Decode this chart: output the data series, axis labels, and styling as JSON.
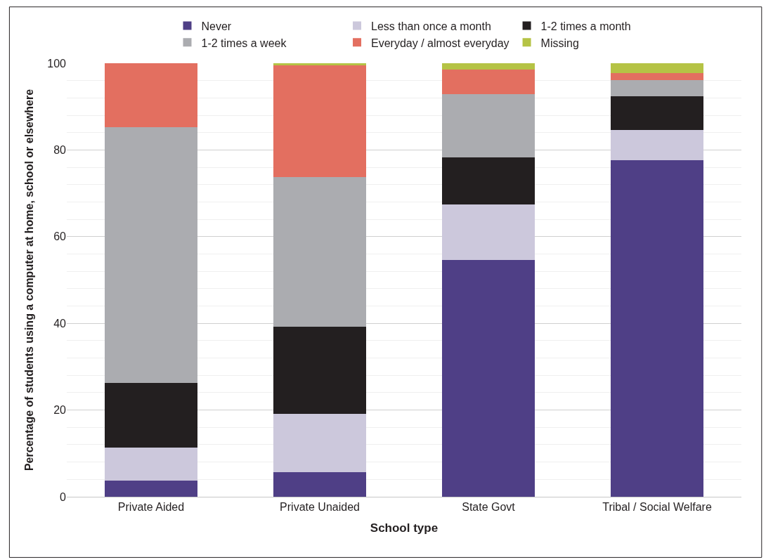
{
  "chart_data": {
    "type": "bar",
    "stacked": true,
    "xlabel": "School type",
    "ylabel": "Percentage of students using a computer at home, school or elsewhere",
    "categories": [
      "Private Aided",
      "Private Unaided",
      "State Govt",
      "Tribal / Social Welfare"
    ],
    "series": [
      {
        "name": "Never",
        "color": "#4f3f86",
        "values": [
          3.7,
          5.6,
          54.7,
          77.6
        ]
      },
      {
        "name": "Less than once a month",
        "color": "#ccc8dc",
        "values": [
          7.7,
          13.6,
          12.8,
          7.0
        ]
      },
      {
        "name": "1-2 times a month",
        "color": "#231f20",
        "values": [
          14.9,
          20.0,
          10.8,
          7.8
        ]
      },
      {
        "name": "1-2 times a week",
        "color": "#abacb0",
        "values": [
          59.0,
          34.5,
          14.6,
          3.7
        ]
      },
      {
        "name": "Everyday / almost everyday",
        "color": "#e36f60",
        "values": [
          14.7,
          25.8,
          5.7,
          1.7
        ]
      },
      {
        "name": "Missing",
        "color": "#b5c345",
        "values": [
          0,
          0.5,
          1.4,
          2.2
        ]
      }
    ],
    "ylim": [
      0,
      100
    ],
    "yticks": [
      0,
      20,
      40,
      60,
      80,
      100
    ],
    "grid": "y",
    "legend": "top"
  }
}
